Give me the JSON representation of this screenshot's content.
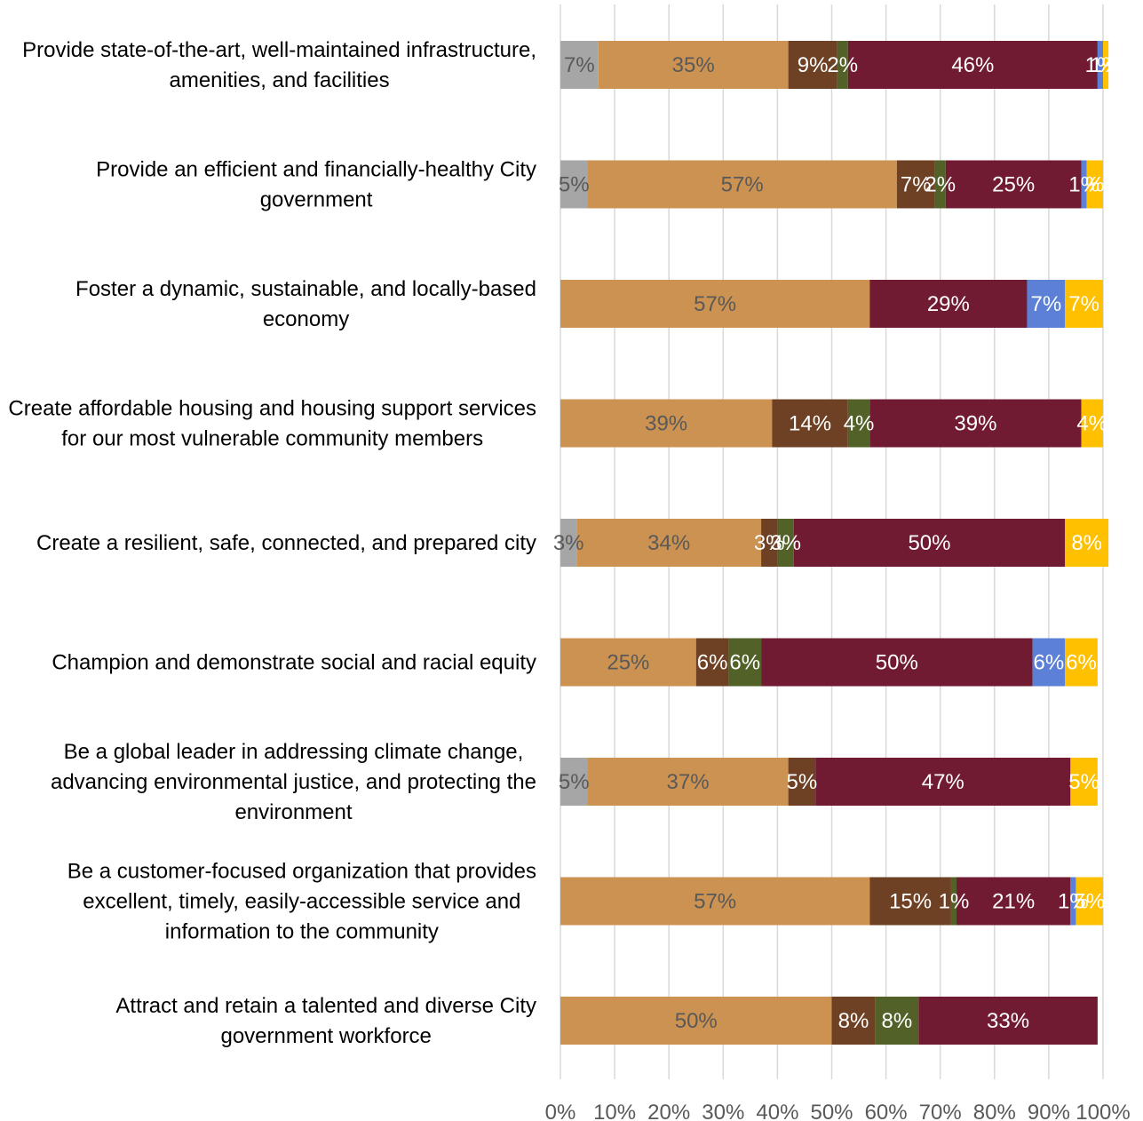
{
  "chart_data": {
    "type": "bar",
    "orientation": "horizontal",
    "stacked": "percent",
    "title": "",
    "xlabel": "",
    "ylabel": "",
    "xlim": [
      0,
      100
    ],
    "grid": "vertical gridlines",
    "legend": "none",
    "x_ticks": [
      "0%",
      "10%",
      "20%",
      "30%",
      "40%",
      "50%",
      "60%",
      "70%",
      "80%",
      "90%",
      "100%"
    ],
    "categories": [
      [
        "Provide state-of-the-art, well-maintained infrastructure,",
        "amenities, and facilities"
      ],
      [
        "Provide an efficient and financially-healthy City",
        "government"
      ],
      [
        "Foster a dynamic, sustainable, and locally-based",
        "economy"
      ],
      [
        "Create affordable housing and housing support services",
        "for our most vulnerable community members"
      ],
      [
        "Create a resilient, safe, connected, and prepared city"
      ],
      [
        "Champion and demonstrate social and racial equity"
      ],
      [
        "Be a global leader in addressing climate change,",
        "advancing environmental justice, and protecting the",
        "environment"
      ],
      [
        "Be a customer-focused organization that provides",
        "excellent, timely, easily-accessible service and",
        "information to the community"
      ],
      [
        "Attract and retain a talented and diverse City",
        "government workforce"
      ]
    ],
    "series": [
      {
        "color": "#a6a6a6",
        "label_color": "#595959",
        "values": [
          7,
          5,
          0,
          0,
          3,
          0,
          5,
          0,
          0
        ]
      },
      {
        "color": "#cc9251",
        "label_color": "#595959",
        "values": [
          35,
          57,
          57,
          39,
          34,
          25,
          37,
          57,
          50
        ]
      },
      {
        "color": "#6e4124",
        "label_color": "#ffffff",
        "values": [
          9,
          7,
          0,
          14,
          3,
          6,
          5,
          15,
          8
        ]
      },
      {
        "color": "#526128",
        "label_color": "#ffffff",
        "values": [
          2,
          2,
          0,
          4,
          3,
          6,
          0,
          1,
          8
        ]
      },
      {
        "color": "#711b33",
        "label_color": "#ffffff",
        "values": [
          46,
          25,
          29,
          39,
          50,
          50,
          47,
          21,
          33
        ]
      },
      {
        "color": "#5b80d6",
        "label_color": "#ffffff",
        "values": [
          1,
          1,
          7,
          0,
          0,
          6,
          0,
          1,
          0
        ]
      },
      {
        "color": "#ffc000",
        "label_color": "#ffffff",
        "values": [
          1,
          3,
          7,
          4,
          8,
          6,
          5,
          5,
          0
        ]
      }
    ],
    "data_labels": [
      [
        "7%",
        "35%",
        "9%",
        "2%",
        "46%",
        "1%",
        "1%"
      ],
      [
        "5%",
        "57%",
        "7%",
        "2%",
        "25%",
        "1%",
        "%"
      ],
      [
        "",
        "57%",
        "",
        "",
        "29%",
        "7%",
        "7%"
      ],
      [
        "",
        "39%",
        "14%",
        "4%",
        "39%",
        "",
        "4%"
      ],
      [
        "3%",
        "34%",
        "3%",
        "3%",
        "50%",
        "",
        "8%"
      ],
      [
        "",
        "25%",
        "6%",
        "6%",
        "50%",
        "6%",
        "6%"
      ],
      [
        "5%",
        "37%",
        "5%",
        "",
        "47%",
        "",
        "5%"
      ],
      [
        "",
        "57%",
        "15%",
        "1%",
        "21%",
        "1%",
        "5%"
      ],
      [
        "",
        "50%",
        "8%",
        "8%",
        "33%",
        "",
        ""
      ]
    ]
  }
}
